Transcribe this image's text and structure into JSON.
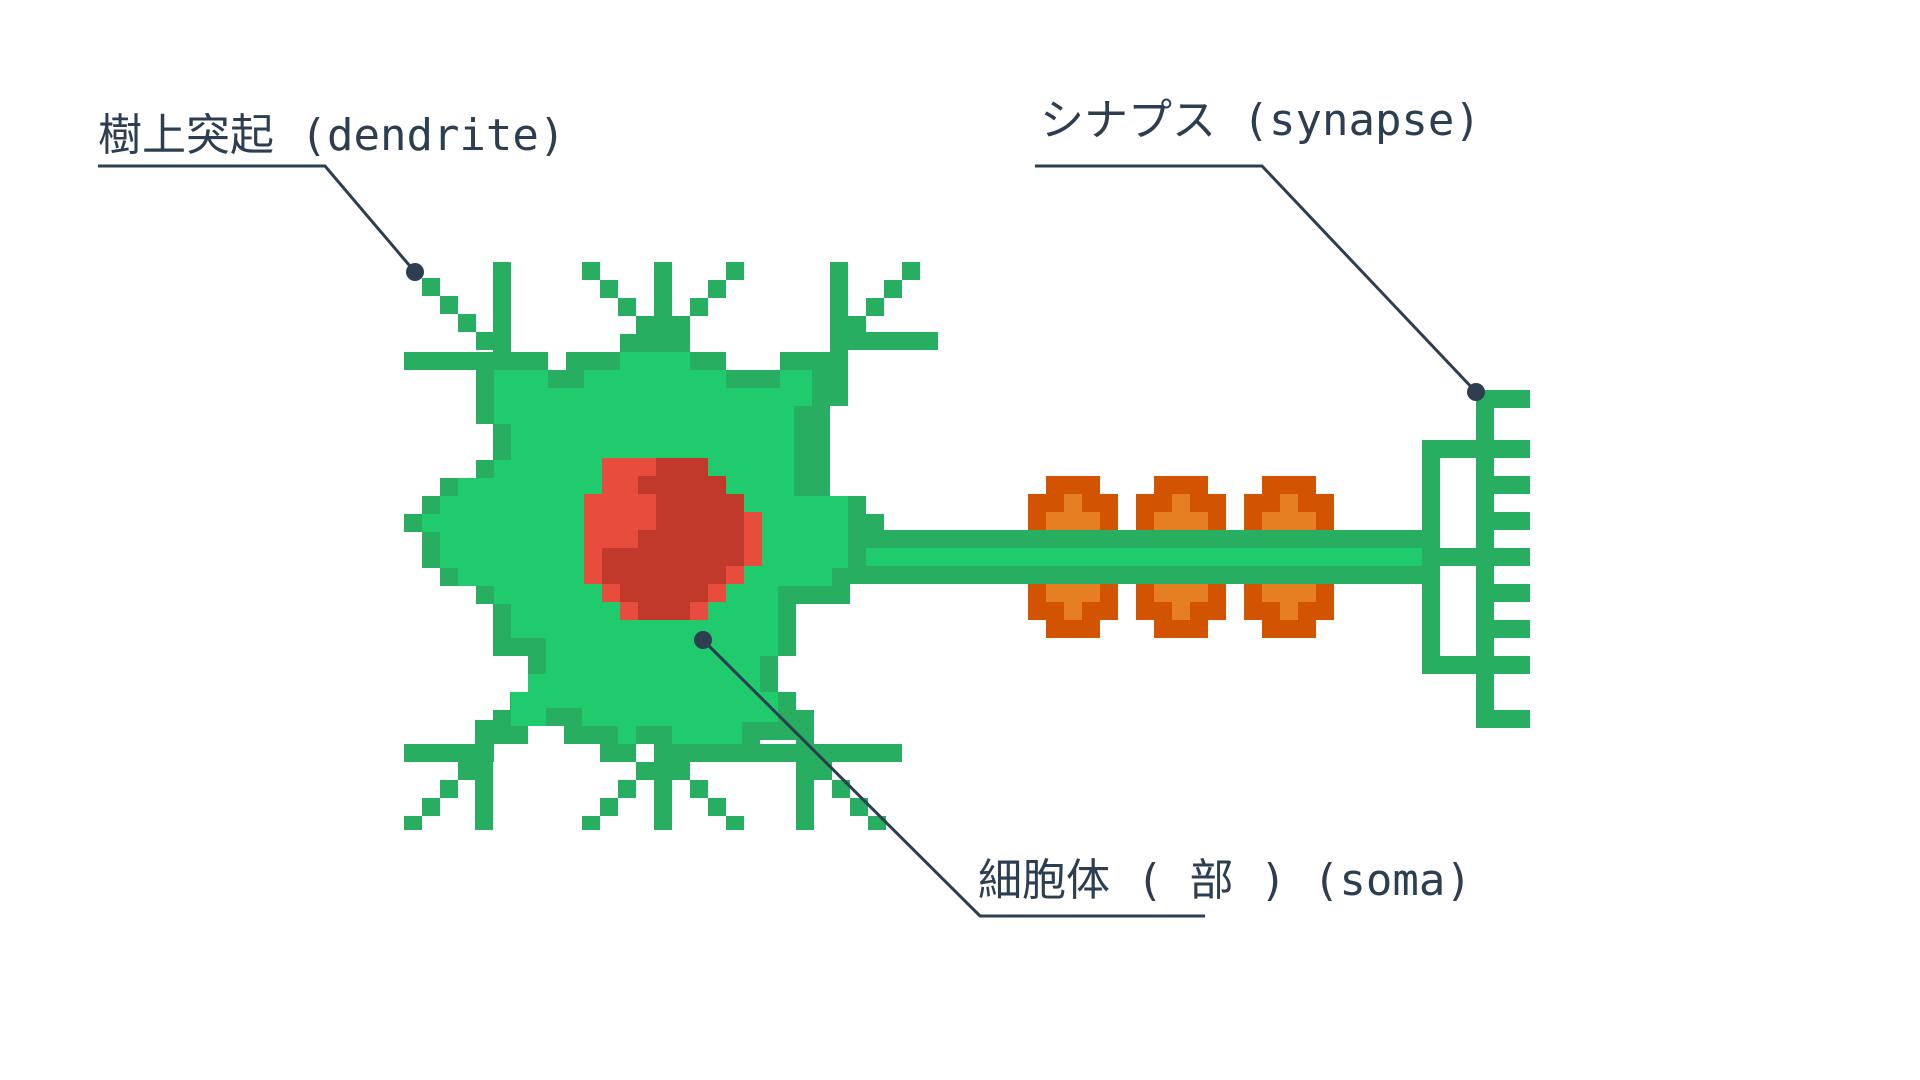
{
  "labels": {
    "dendrite": "樹上突起 (dendrite)",
    "synapse": "シナプス (synapse)",
    "soma": "細胞体 ( 部 ) (soma)"
  },
  "colors": {
    "membrane": "#1fcb6d",
    "membrane_outline": "#27ae60",
    "nucleus": "#c0392b",
    "nucleus_highlight": "#e74c3c",
    "myelin": "#d35400",
    "myelin_highlight": "#e67e22",
    "leader_line": "#2c3e50"
  }
}
